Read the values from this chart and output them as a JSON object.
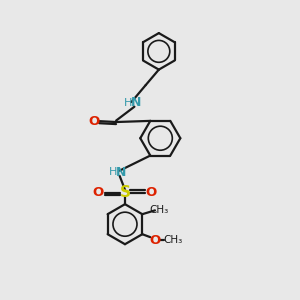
{
  "background_color": "#e8e8e8",
  "bond_color": "#1a1a1a",
  "N_color": "#3399aa",
  "O_color": "#dd2200",
  "S_color": "#cccc00",
  "line_width": 1.6,
  "figsize": [
    3.0,
    3.0
  ],
  "dpi": 100,
  "xlim": [
    0,
    10
  ],
  "ylim": [
    0,
    10
  ]
}
